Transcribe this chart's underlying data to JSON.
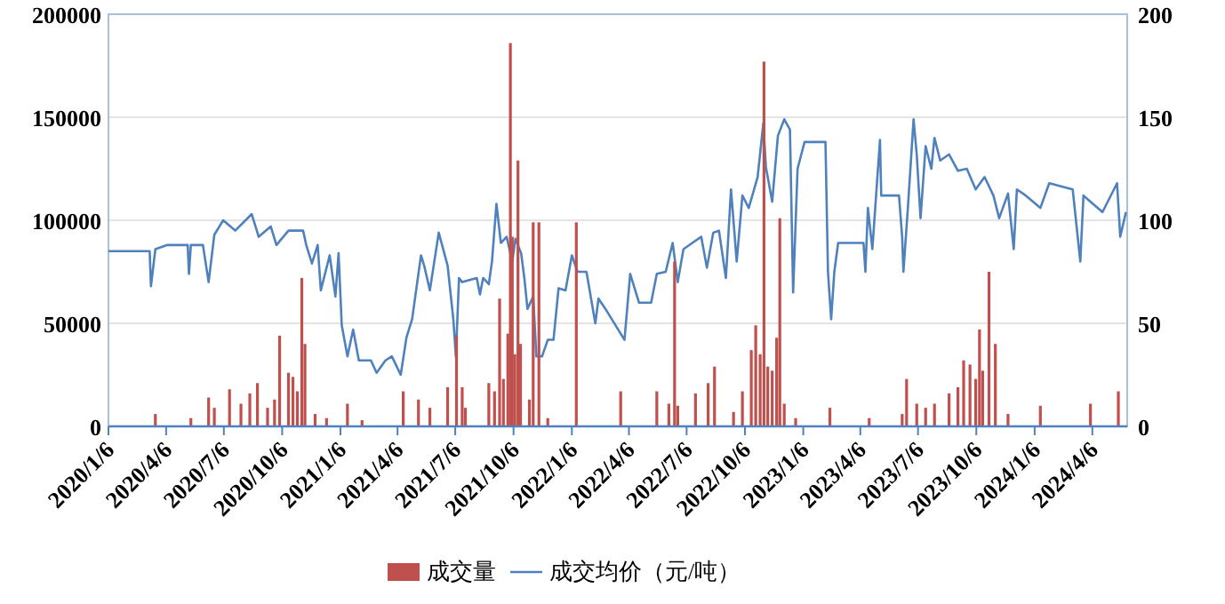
{
  "chart_data": {
    "type": "bar",
    "legend": "bottom",
    "grid": "y",
    "xlim": [
      "2020-01-06",
      "2024-05-31"
    ],
    "xticks": [
      {
        "value": "2020-01-06",
        "label": "2020/1/6"
      },
      {
        "value": "2020-04-06",
        "label": "2020/4/6"
      },
      {
        "value": "2020-07-06",
        "label": "2020/7/6"
      },
      {
        "value": "2020-10-06",
        "label": "2020/10/6"
      },
      {
        "value": "2021-01-06",
        "label": "2021/1/6"
      },
      {
        "value": "2021-04-06",
        "label": "2021/4/6"
      },
      {
        "value": "2021-07-06",
        "label": "2021/7/6"
      },
      {
        "value": "2021-10-06",
        "label": "2021/10/6"
      },
      {
        "value": "2022-01-06",
        "label": "2022/1/6"
      },
      {
        "value": "2022-04-06",
        "label": "2022/4/6"
      },
      {
        "value": "2022-07-06",
        "label": "2022/7/6"
      },
      {
        "value": "2022-10-06",
        "label": "2022/10/6"
      },
      {
        "value": "2023-01-06",
        "label": "2023/1/6"
      },
      {
        "value": "2023-04-06",
        "label": "2023/4/6"
      },
      {
        "value": "2023-07-06",
        "label": "2023/7/6"
      },
      {
        "value": "2023-10-06",
        "label": "2023/10/6"
      },
      {
        "value": "2024-01-06",
        "label": "2024/1/6"
      },
      {
        "value": "2024-04-06",
        "label": "2024/4/6"
      }
    ],
    "ylim": [
      0,
      200000
    ],
    "yticks": [
      0,
      50000,
      100000,
      150000,
      200000
    ],
    "y2lim": [
      0,
      200
    ],
    "y2ticks": [
      0,
      50,
      100,
      150,
      200
    ],
    "series": [
      {
        "name": "成交量",
        "color": "#c0504d",
        "x": [
          "2020-03-20",
          "2020-05-15",
          "2020-06-12",
          "2020-06-21",
          "2020-07-15",
          "2020-08-02",
          "2020-08-16",
          "2020-08-28",
          "2020-09-13",
          "2020-09-24",
          "2020-10-02",
          "2020-10-16",
          "2020-10-23",
          "2020-10-30",
          "2020-11-06",
          "2020-11-11",
          "2020-11-27",
          "2020-12-15",
          "2021-01-17",
          "2021-02-09",
          "2021-04-15",
          "2021-05-09",
          "2021-05-27",
          "2021-06-24",
          "2021-07-08",
          "2021-07-17",
          "2021-07-22",
          "2021-08-28",
          "2021-09-06",
          "2021-09-14",
          "2021-09-20",
          "2021-09-27",
          "2021-10-01",
          "2021-10-04",
          "2021-10-08",
          "2021-10-13",
          "2021-10-17",
          "2021-10-31",
          "2021-11-06",
          "2021-11-15",
          "2021-11-29",
          "2022-01-13",
          "2022-03-24",
          "2022-05-20",
          "2022-06-08",
          "2022-06-17",
          "2022-06-22",
          "2022-07-20",
          "2022-08-09",
          "2022-08-19",
          "2022-09-18",
          "2022-10-02",
          "2022-10-16",
          "2022-10-23",
          "2022-10-30",
          "2022-11-05",
          "2022-11-11",
          "2022-11-18",
          "2022-11-25",
          "2022-11-30",
          "2022-12-07",
          "2022-12-25",
          "2023-02-17",
          "2023-04-20",
          "2023-06-11",
          "2023-06-18",
          "2023-07-04",
          "2023-07-18",
          "2023-08-01",
          "2023-08-24",
          "2023-09-07",
          "2023-09-16",
          "2023-09-26",
          "2023-10-05",
          "2023-10-11",
          "2023-10-16",
          "2023-10-26",
          "2023-11-05",
          "2023-11-25",
          "2024-01-15",
          "2024-04-03",
          "2024-05-17"
        ],
        "values": [
          6000,
          4000,
          14000,
          9000,
          18000,
          11000,
          16000,
          21000,
          9000,
          13000,
          44000,
          26000,
          24000,
          17000,
          72000,
          40000,
          6000,
          4000,
          11000,
          3000,
          17000,
          13000,
          9000,
          19000,
          44000,
          19000,
          9000,
          21000,
          17000,
          62000,
          23000,
          45000,
          186000,
          92000,
          35000,
          129000,
          40000,
          13000,
          99000,
          99000,
          4000,
          99000,
          17000,
          17000,
          11000,
          80000,
          10000,
          16000,
          21000,
          29000,
          7000,
          17000,
          37000,
          49000,
          35000,
          177000,
          29000,
          27000,
          43000,
          101000,
          11000,
          4000,
          9000,
          4000,
          6000,
          23000,
          11000,
          9000,
          11000,
          16000,
          19000,
          32000,
          30000,
          23000,
          47000,
          27000,
          75000,
          40000,
          6000,
          10000,
          11000,
          17000
        ]
      },
      {
        "name": "成交均价（元/吨）",
        "type": "line",
        "axis": "y2",
        "color": "#4f81bd",
        "x": [
          "2020-01-06",
          "2020-03-11",
          "2020-03-13",
          "2020-03-20",
          "2020-04-08",
          "2020-05-10",
          "2020-05-12",
          "2020-05-15",
          "2020-06-03",
          "2020-06-12",
          "2020-06-21",
          "2020-07-05",
          "2020-07-24",
          "2020-08-19",
          "2020-08-30",
          "2020-09-18",
          "2020-09-27",
          "2020-10-16",
          "2020-11-08",
          "2020-11-13",
          "2020-11-22",
          "2020-12-01",
          "2020-12-06",
          "2020-12-20",
          "2020-12-29",
          "2021-01-03",
          "2021-01-08",
          "2021-01-17",
          "2021-01-26",
          "2021-02-04",
          "2021-02-23",
          "2021-03-04",
          "2021-03-18",
          "2021-03-28",
          "2021-04-11",
          "2021-04-20",
          "2021-04-29",
          "2021-05-13",
          "2021-05-18",
          "2021-05-27",
          "2021-06-10",
          "2021-06-24",
          "2021-07-03",
          "2021-07-07",
          "2021-07-12",
          "2021-07-17",
          "2021-08-09",
          "2021-08-14",
          "2021-08-19",
          "2021-08-28",
          "2021-09-02",
          "2021-09-09",
          "2021-09-16",
          "2021-09-25",
          "2021-10-04",
          "2021-10-09",
          "2021-10-18",
          "2021-10-23",
          "2021-10-28",
          "2021-11-06",
          "2021-11-11",
          "2021-11-20",
          "2021-11-29",
          "2021-12-08",
          "2021-12-16",
          "2021-12-27",
          "2022-01-06",
          "2022-01-15",
          "2022-01-29",
          "2022-02-12",
          "2022-02-17",
          "2022-03-02",
          "2022-03-30",
          "2022-04-08",
          "2022-04-22",
          "2022-05-11",
          "2022-05-20",
          "2022-06-03",
          "2022-06-14",
          "2022-06-22",
          "2022-07-01",
          "2022-07-15",
          "2022-07-29",
          "2022-08-07",
          "2022-08-17",
          "2022-08-26",
          "2022-09-06",
          "2022-09-14",
          "2022-09-23",
          "2022-10-02",
          "2022-10-12",
          "2022-10-26",
          "2022-11-04",
          "2022-11-08",
          "2022-11-18",
          "2022-11-27",
          "2022-12-07",
          "2022-12-16",
          "2022-12-21",
          "2022-12-28",
          "2023-01-08",
          "2023-02-10",
          "2023-02-14",
          "2023-02-19",
          "2023-02-24",
          "2023-03-02",
          "2023-04-11",
          "2023-04-14",
          "2023-04-18",
          "2023-04-25",
          "2023-05-07",
          "2023-05-09",
          "2023-06-06",
          "2023-06-11",
          "2023-06-13",
          "2023-06-20",
          "2023-06-29",
          "2023-07-04",
          "2023-07-10",
          "2023-07-18",
          "2023-07-27",
          "2023-08-01",
          "2023-08-10",
          "2023-08-24",
          "2023-09-07",
          "2023-09-21",
          "2023-10-05",
          "2023-10-19",
          "2023-11-02",
          "2023-11-11",
          "2023-11-25",
          "2023-12-04",
          "2023-12-09",
          "2023-12-23",
          "2024-01-15",
          "2024-01-29",
          "2024-03-06",
          "2024-03-18",
          "2024-03-23",
          "2024-04-22",
          "2024-05-15",
          "2024-05-20",
          "2024-05-29"
        ],
        "values": [
          85,
          85,
          68,
          86,
          88,
          88,
          74,
          88,
          88,
          70,
          93,
          100,
          95,
          103,
          92,
          97,
          88,
          95,
          95,
          88,
          79,
          88,
          66,
          83,
          63,
          84,
          49,
          34,
          47,
          32,
          32,
          26,
          32,
          34,
          25,
          43,
          52,
          83,
          78,
          66,
          94,
          78,
          52,
          34,
          72,
          70,
          72,
          64,
          72,
          69,
          80,
          108,
          89,
          92,
          80,
          91,
          84,
          72,
          57,
          63,
          34,
          34,
          42,
          42,
          67,
          66,
          83,
          75,
          75,
          50,
          62,
          56,
          42,
          74,
          60,
          60,
          74,
          75,
          89,
          70,
          86,
          89,
          92,
          77,
          94,
          95,
          72,
          115,
          80,
          112,
          106,
          121,
          147,
          126,
          109,
          141,
          149,
          144,
          65,
          125,
          138,
          138,
          75,
          52,
          75,
          89,
          89,
          75,
          106,
          86,
          139,
          112,
          112,
          92,
          75,
          106,
          149,
          132,
          101,
          136,
          125,
          140,
          129,
          132,
          124,
          125,
          115,
          121,
          112,
          101,
          113,
          86,
          115,
          112,
          106,
          118,
          115,
          80,
          112,
          104,
          118,
          92,
          104
        ]
      }
    ]
  }
}
